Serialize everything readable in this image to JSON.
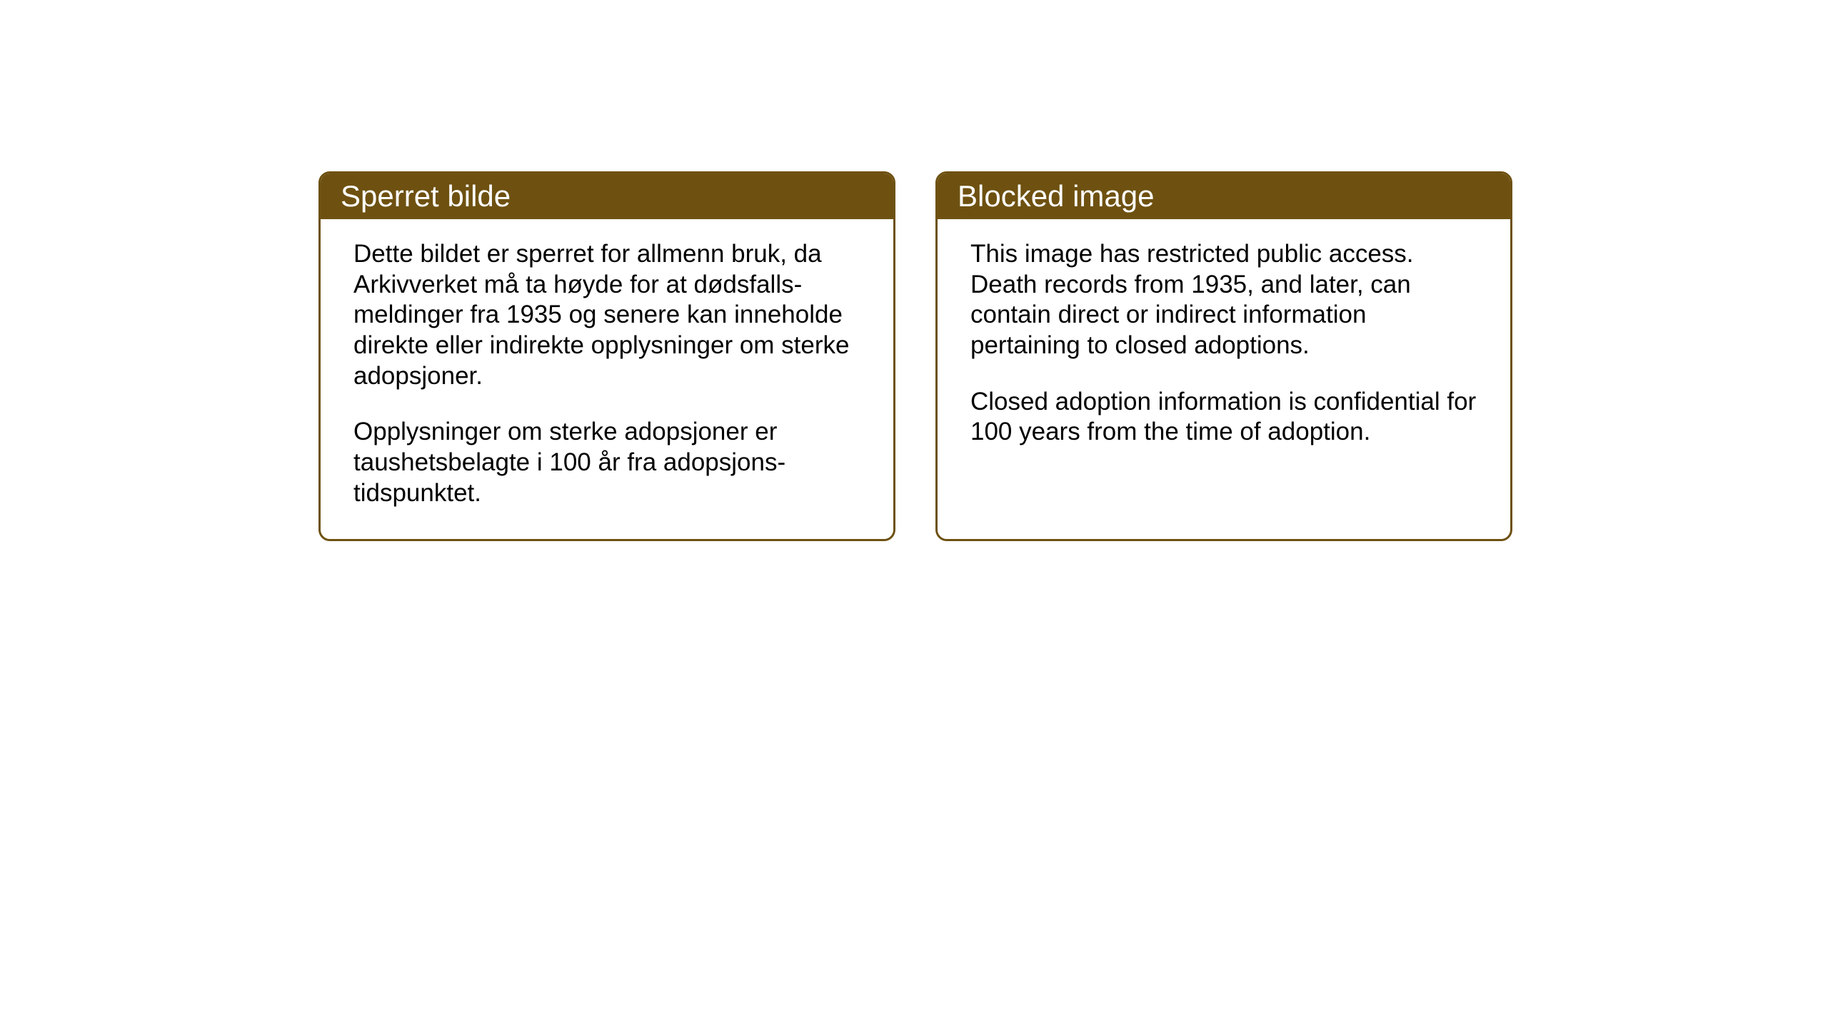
{
  "page": {
    "background_color": "#ffffff"
  },
  "notices": {
    "norwegian": {
      "title": "Sperret bilde",
      "paragraph1": "Dette bildet er sperret for allmenn bruk,\nda Arkivverket må ta høyde for at dødsfalls-\nmeldinger fra 1935 og senere kan inneholde direkte eller indirekte opplysninger om sterke adopsjoner.",
      "paragraph2": "Opplysninger om sterke adopsjoner er taushetsbelagte i 100 år fra adopsjons-\ntidspunktet."
    },
    "english": {
      "title": "Blocked image",
      "paragraph1": "This image has restricted public access. Death records from 1935, and later, can contain direct or indirect information pertaining to closed adoptions.",
      "paragraph2": "Closed adoption information is confidential for 100 years from the time of adoption."
    }
  },
  "styling": {
    "header_bg_color": "#6e5111",
    "header_text_color": "#ffffff",
    "border_color": "#6e5111",
    "body_text_color": "#000000",
    "title_fontsize": 42,
    "body_fontsize": 35,
    "border_radius": 16,
    "border_width": 3
  }
}
